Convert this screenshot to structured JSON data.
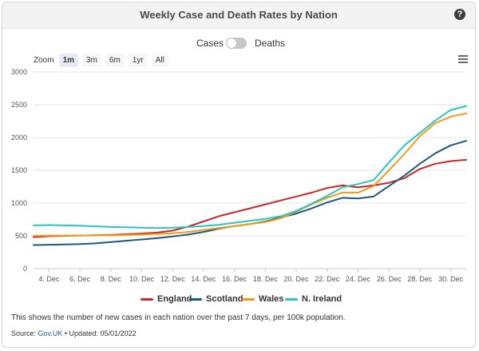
{
  "header": {
    "title": "Weekly Case and Death Rates by Nation",
    "help_glyph": "?"
  },
  "toggle": {
    "left_label": "Cases",
    "right_label": "Deaths",
    "selected": "Cases"
  },
  "zoom": {
    "label": "Zoom",
    "options": [
      "1m",
      "3m",
      "6m",
      "1yr",
      "All"
    ],
    "active": "1m"
  },
  "note": "This shows the number of new cases in each nation over the past 7 days, per 100k population.",
  "source": {
    "prefix": "Source: ",
    "link": "Gov.UK",
    "bullet": " • ",
    "updated": "Updated: 05/01/2022"
  },
  "chart_data": {
    "type": "line",
    "x": [
      3,
      4,
      5,
      6,
      7,
      8,
      9,
      10,
      11,
      12,
      13,
      14,
      15,
      16,
      17,
      18,
      19,
      20,
      21,
      22,
      23,
      24,
      25,
      26,
      27,
      28,
      29,
      30,
      31
    ],
    "x_tick_labels": [
      "4. Dec",
      "6. Dec",
      "8. Dec",
      "10. Dec",
      "12. Dec",
      "14. Dec",
      "16. Dec",
      "18. Dec",
      "20. Dec",
      "22. Dec",
      "24. Dec",
      "26. Dec",
      "28. Dec",
      "30. Dec"
    ],
    "x_ticks": [
      4,
      6,
      8,
      10,
      12,
      14,
      16,
      18,
      20,
      22,
      24,
      26,
      28,
      30
    ],
    "xlim": [
      3,
      31
    ],
    "ylim": [
      0,
      3000
    ],
    "y_ticks": [
      0,
      500,
      1000,
      1500,
      2000,
      2500,
      3000
    ],
    "grid": "horizontal",
    "legend_position": "bottom",
    "series": [
      {
        "name": "England",
        "color": "#c8282c",
        "values": [
          480,
          495,
          500,
          505,
          510,
          515,
          525,
          535,
          550,
          580,
          640,
          720,
          800,
          860,
          920,
          980,
          1040,
          1100,
          1160,
          1230,
          1270,
          1240,
          1270,
          1310,
          1380,
          1520,
          1600,
          1640,
          1660
        ]
      },
      {
        "name": "Scotland",
        "color": "#1c5a78",
        "values": [
          360,
          365,
          370,
          375,
          385,
          405,
          425,
          445,
          465,
          490,
          520,
          560,
          610,
          650,
          680,
          720,
          780,
          840,
          920,
          1010,
          1080,
          1070,
          1100,
          1260,
          1420,
          1600,
          1760,
          1880,
          1950
        ]
      },
      {
        "name": "Wales",
        "color": "#f09a1a",
        "values": [
          500,
          505,
          505,
          505,
          508,
          510,
          515,
          520,
          530,
          540,
          560,
          590,
          620,
          650,
          680,
          710,
          770,
          870,
          980,
          1080,
          1160,
          1160,
          1260,
          1500,
          1750,
          2020,
          2220,
          2320,
          2370
        ]
      },
      {
        "name": "N. Ireland",
        "color": "#2ec4c0",
        "values": [
          660,
          665,
          660,
          655,
          645,
          635,
          630,
          625,
          620,
          625,
          635,
          650,
          670,
          700,
          730,
          760,
          800,
          880,
          990,
          1110,
          1240,
          1290,
          1350,
          1620,
          1880,
          2070,
          2260,
          2420,
          2480
        ]
      }
    ]
  }
}
